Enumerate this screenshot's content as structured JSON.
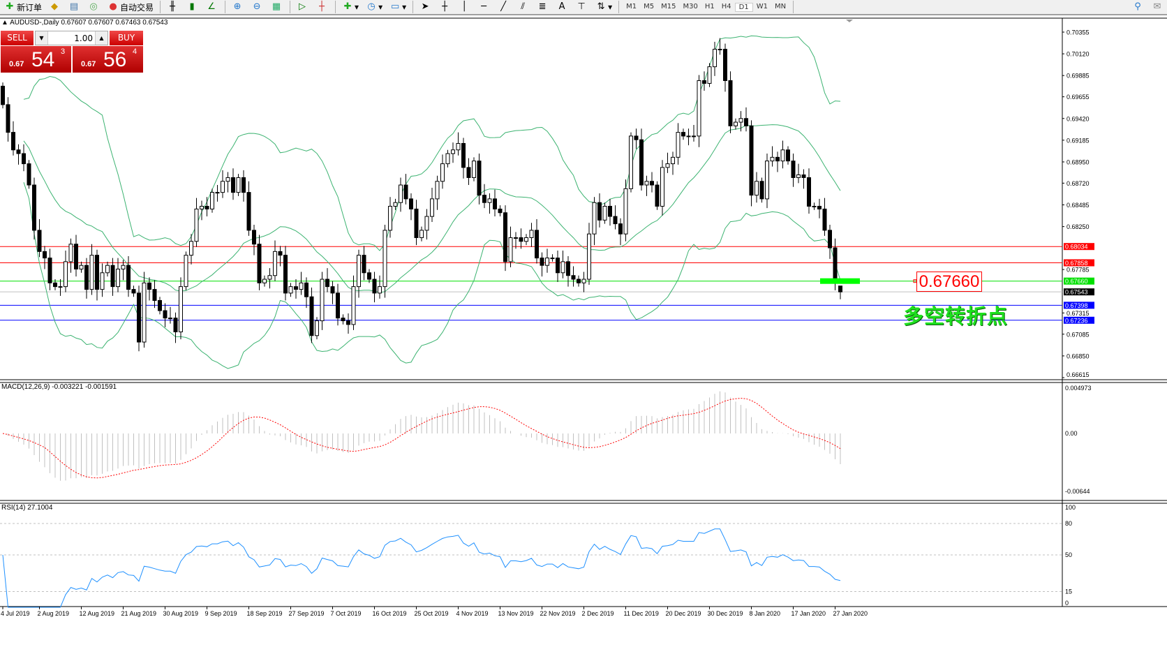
{
  "toolbar": {
    "new_order": "新订单",
    "auto_trading": "自动交易",
    "timeframes": [
      "M1",
      "M5",
      "M15",
      "M30",
      "H1",
      "H4",
      "D1",
      "W1",
      "MN"
    ],
    "active_timeframe": "D1",
    "icons": [
      "bar-chart-icon",
      "candlestick-icon",
      "line-chart-icon",
      "zoom-in-icon",
      "zoom-out-icon",
      "tile-windows-icon",
      "auto-scroll-icon",
      "chart-shift-icon",
      "indicators-icon",
      "periods-icon",
      "templates-icon",
      "cursor-icon",
      "crosshair-icon",
      "vertical-line-icon",
      "horizontal-line-icon",
      "trendline-icon",
      "equidistant-channel-icon",
      "fibonacci-icon",
      "text-icon",
      "text-label-icon",
      "arrows-icon",
      "search-icon",
      "chat-icon"
    ],
    "text_tool": "A"
  },
  "header": {
    "symbol_info": "AUDUSD-,Daily  0.67607 0.67607 0.67463 0.67543"
  },
  "trade_panel": {
    "sell_label": "SELL",
    "buy_label": "BUY",
    "lot": "1.00",
    "sell_prefix": "0.67",
    "sell_big": "54",
    "sell_sup": "3",
    "buy_prefix": "0.67",
    "buy_big": "56",
    "buy_sup": "4"
  },
  "annotation": {
    "price_tag": "0.67660",
    "text": "多空转折点"
  },
  "colors": {
    "bands": "#3cb371",
    "macd_signal": "#ff0000",
    "macd_hist": "#c0c0c0",
    "rsi": "#1e90ff",
    "accent_green": "#00ff00"
  },
  "chart_data": {
    "type": "candlestick",
    "symbol": "AUDUSD-",
    "timeframe": "Daily",
    "ylim": [
      0.66615,
      0.70355
    ],
    "y_ticks": [
      "0.70355",
      "0.70120",
      "0.69885",
      "0.69655",
      "0.69420",
      "0.69185",
      "0.68950",
      "0.68720",
      "0.68485",
      "0.68250",
      "0.67785",
      "0.67315",
      "0.67085",
      "0.66850",
      "0.66615"
    ],
    "x_ticks": [
      "4 Jul 2019",
      "2 Aug 2019",
      "12 Aug 2019",
      "21 Aug 2019",
      "30 Aug 2019",
      "9 Sep 2019",
      "18 Sep 2019",
      "27 Sep 2019",
      "7 Oct 2019",
      "16 Oct 2019",
      "25 Oct 2019",
      "4 Nov 2019",
      "13 Nov 2019",
      "22 Nov 2019",
      "2 Dec 2019",
      "11 Dec 2019",
      "20 Dec 2019",
      "30 Dec 2019",
      "8 Jan 2020",
      "17 Jan 2020",
      "27 Jan 2020"
    ],
    "closes": [
      0.6957,
      0.6927,
      0.6908,
      0.6904,
      0.6893,
      0.687,
      0.6821,
      0.6798,
      0.6791,
      0.6764,
      0.676,
      0.676,
      0.6787,
      0.6806,
      0.6779,
      0.6783,
      0.6757,
      0.6794,
      0.6757,
      0.6775,
      0.6783,
      0.676,
      0.6779,
      0.6783,
      0.6757,
      0.6753,
      0.67,
      0.6764,
      0.6757,
      0.6745,
      0.6734,
      0.6726,
      0.6726,
      0.6711,
      0.676,
      0.6794,
      0.6809,
      0.6844,
      0.6847,
      0.6844,
      0.6862,
      0.6862,
      0.6874,
      0.6878,
      0.6862,
      0.6878,
      0.6862,
      0.6821,
      0.6806,
      0.6764,
      0.6768,
      0.6772,
      0.6798,
      0.6794,
      0.6753,
      0.676,
      0.6757,
      0.6764,
      0.6749,
      0.6707,
      0.6723,
      0.6768,
      0.676,
      0.6753,
      0.6726,
      0.6723,
      0.6719,
      0.676,
      0.6794,
      0.6775,
      0.6768,
      0.6753,
      0.676,
      0.6821,
      0.6847,
      0.6851,
      0.687,
      0.6855,
      0.6844,
      0.6813,
      0.6821,
      0.6836,
      0.6855,
      0.6874,
      0.6893,
      0.6904,
      0.6908,
      0.6915,
      0.6889,
      0.6878,
      0.6896,
      0.6859,
      0.6851,
      0.6855,
      0.6844,
      0.684,
      0.6787,
      0.6813,
      0.6813,
      0.6809,
      0.6813,
      0.6821,
      0.6791,
      0.6783,
      0.6791,
      0.6791,
      0.6775,
      0.6787,
      0.6772,
      0.6768,
      0.6764,
      0.6768,
      0.6817,
      0.6851,
      0.6832,
      0.6847,
      0.6836,
      0.6828,
      0.6817,
      0.6866,
      0.6923,
      0.6919,
      0.687,
      0.6874,
      0.687,
      0.6847,
      0.6889,
      0.6893,
      0.69,
      0.6927,
      0.6923,
      0.6923,
      0.6923,
      0.6983,
      0.698,
      0.6998,
      0.7017,
      0.7017,
      0.6983,
      0.6934,
      0.6938,
      0.6942,
      0.6934,
      0.6859,
      0.6874,
      0.6855,
      0.6896,
      0.69,
      0.6896,
      0.6908,
      0.6896,
      0.6878,
      0.6881,
      0.6878,
      0.6847,
      0.6847,
      0.6844,
      0.6821,
      0.6802,
      0.6764,
      0.67543
    ],
    "last_bar": {
      "open": 0.67607,
      "high": 0.67607,
      "low": 0.67463,
      "close": 0.67543
    },
    "horizontal_lines": [
      {
        "price": "0.68034",
        "color": "#ff0000"
      },
      {
        "price": "0.67858",
        "color": "#ff0000"
      },
      {
        "price": "0.67660",
        "color": "#00e000"
      },
      {
        "price": "0.67543",
        "color": "#000000",
        "bid": true
      },
      {
        "price": "0.67398",
        "color": "#0000ff"
      },
      {
        "price": "0.67236",
        "color": "#0000ff"
      }
    ],
    "overlays": [
      "Bollinger Bands"
    ],
    "macd": {
      "label": "MACD(12,26,9) -0.003221 -0.001591",
      "ylim": [
        -0.00644,
        0.004973
      ],
      "ticks": [
        "0.004973",
        "0.00",
        "-0.00644"
      ]
    },
    "rsi": {
      "label": "RSI(14) 27.1004",
      "levels": [
        80,
        50,
        15
      ],
      "ticks": [
        "100",
        "80",
        "50",
        "15",
        "0"
      ]
    }
  }
}
